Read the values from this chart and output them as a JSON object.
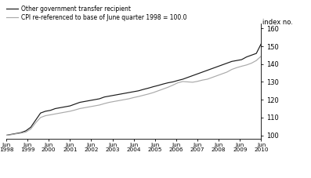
{
  "ylabel": "index no.",
  "ylim": [
    98,
    163
  ],
  "yticks": [
    100,
    110,
    120,
    130,
    140,
    150,
    160
  ],
  "x_labels": [
    "Jun\n1998",
    "Jun\n1999",
    "Jun\n2000",
    "Jun\n2001",
    "Jun\n2002",
    "Jun\n2003",
    "Jun\n2004",
    "Jun\n2005",
    "Jun\n2006",
    "Jun\n2007",
    "Jun\n2008",
    "Jun\n2009",
    "Jun\n2010"
  ],
  "legend_line1": "Other government transfer recipient",
  "legend_line2": "CPI re-referenced to base of June quarter 1998 = 100.0",
  "line1_color": "#1a1a1a",
  "line2_color": "#aaaaaa",
  "background_color": "#ffffff",
  "line1_values": [
    100.0,
    100.5,
    101.0,
    101.5,
    102.5,
    104.5,
    108.5,
    112.5,
    113.5,
    114.0,
    115.0,
    115.5,
    116.0,
    116.5,
    117.5,
    118.5,
    119.0,
    119.5,
    120.0,
    120.5,
    121.5,
    122.0,
    122.5,
    123.0,
    123.5,
    124.0,
    124.5,
    125.0,
    125.8,
    126.5,
    127.3,
    128.0,
    128.8,
    129.5,
    130.0,
    130.8,
    131.5,
    132.5,
    133.5,
    134.5,
    135.5,
    136.5,
    137.5,
    138.5,
    139.5,
    140.5,
    141.5,
    142.0,
    142.5,
    144.0,
    145.0,
    146.0,
    151.5
  ],
  "line2_values": [
    100.0,
    100.3,
    100.8,
    101.2,
    101.8,
    103.5,
    107.0,
    110.0,
    111.0,
    111.5,
    112.0,
    112.5,
    113.0,
    113.5,
    114.2,
    115.0,
    115.5,
    116.0,
    116.5,
    117.0,
    117.8,
    118.5,
    119.0,
    119.5,
    120.0,
    120.5,
    121.2,
    121.8,
    122.5,
    123.2,
    124.0,
    125.0,
    126.0,
    127.0,
    128.2,
    129.5,
    130.2,
    130.0,
    129.8,
    130.3,
    131.0,
    131.5,
    132.5,
    133.5,
    134.5,
    135.5,
    137.0,
    138.0,
    138.8,
    139.5,
    140.5,
    142.0,
    144.5
  ]
}
